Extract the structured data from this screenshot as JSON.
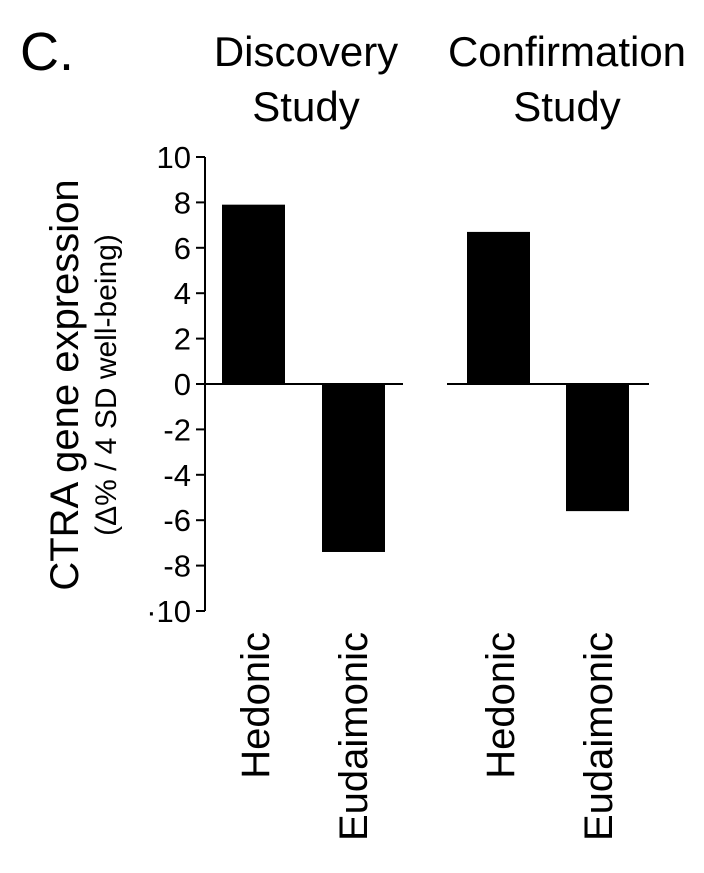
{
  "panel_label": "C.",
  "colors": {
    "bar": "#000000",
    "axis": "#000000",
    "text": "#000000",
    "background": "#ffffff"
  },
  "chart_data": {
    "type": "bar",
    "ylabel": "CTRA gene expression",
    "ylabel_sub": "(Δ% / 4 SD well-being)",
    "ylim": [
      -10,
      10
    ],
    "yticks": [
      10,
      8,
      6,
      4,
      2,
      0,
      -2,
      -4,
      -6,
      -8,
      -10
    ],
    "ytick_labels": [
      "10",
      "8",
      "6",
      "4",
      "2",
      "0",
      "-2",
      "-4",
      "-6",
      "-8",
      "·10"
    ],
    "grid": false,
    "legend": "none",
    "groups": [
      {
        "title_lines": [
          "Discovery",
          "Study"
        ],
        "categories": [
          "Hedonic",
          "Eudaimonic"
        ],
        "values": [
          7.9,
          -7.4
        ]
      },
      {
        "title_lines": [
          "Confirmation",
          "Study"
        ],
        "categories": [
          "Hedonic",
          "Eudaimonic"
        ],
        "values": [
          6.7,
          -5.6
        ]
      }
    ]
  }
}
